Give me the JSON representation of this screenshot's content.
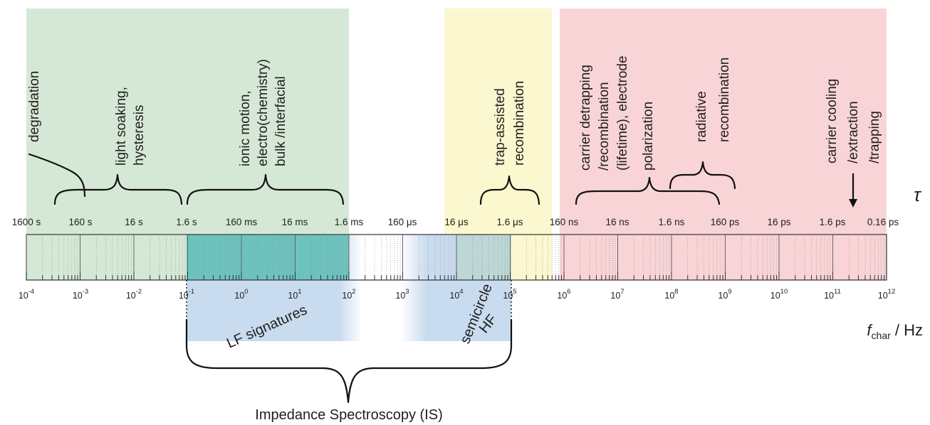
{
  "colors": {
    "low_freq_green": "#d5e8d6",
    "mid_yellow": "#fbf7cf",
    "high_freq_red": "#f9d4d6",
    "is_blue": "#c9dbee",
    "is_teal": "#5dbdb5"
  },
  "axes": {
    "tau_symbol": "τ",
    "freq_label_main": "f",
    "freq_label_sub": "char",
    "freq_label_unit": " / Hz",
    "tau_ticks": [
      "1600 s",
      "160 s",
      "16 s",
      "1.6 s",
      "160 ms",
      "16 ms",
      "1.6 ms",
      "160 μs",
      "16 μs",
      "1.6 μs",
      "160 ns",
      "16 ns",
      "1.6 ns",
      "160 ps",
      "16 ps",
      "1.6 ps",
      "0.16 ps"
    ],
    "freq_exponents": [
      "-4",
      "-3",
      "-2",
      "-1",
      "0",
      "1",
      "2",
      "3",
      "4",
      "5",
      "6",
      "7",
      "8",
      "9",
      "10",
      "11",
      "12"
    ],
    "freq_base": "10"
  },
  "processes": {
    "degradation": "degradation",
    "light_soaking_1": "light soaking,",
    "light_soaking_2": "hysteresis",
    "ionic_1": "ionic motion,",
    "ionic_2": "electro(chemistry)",
    "ionic_3": "bulk /interfacial",
    "trap_1": "trap-assisted",
    "trap_2": "recombination",
    "carrier_1": "carrier detrapping",
    "carrier_2": "/recombination",
    "carrier_3": "(lifetime), electrode",
    "carrier_4": "polarization",
    "radiative_1": "radiative",
    "radiative_2": "recombination",
    "cooling_1": "carrier cooling",
    "cooling_2": "/extraction",
    "cooling_3": "/trapping"
  },
  "impedance": {
    "lf_label": "LF signatures",
    "hf_1": "HF",
    "hf_2": "semicircle",
    "title": "Impedance Spectroscopy (IS)"
  }
}
